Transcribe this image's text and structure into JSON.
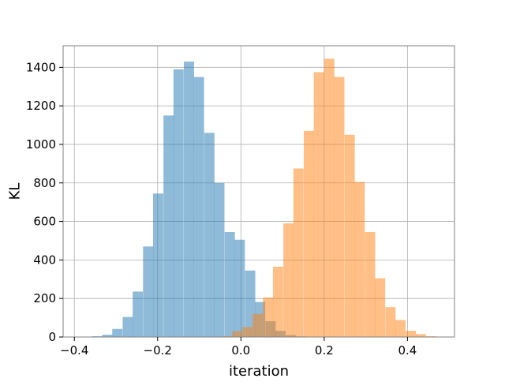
{
  "chart_data": {
    "type": "histogram",
    "title": "",
    "xlabel": "iteration",
    "ylabel": "KL",
    "xlim": [
      -0.427,
      0.513
    ],
    "ylim": [
      0,
      1512
    ],
    "grid": true,
    "legend": "none",
    "xticks": [
      -0.4,
      -0.2,
      0.0,
      0.2,
      0.4
    ],
    "xtick_labels": [
      "−0.4",
      "−0.2",
      "0.0",
      "0.2",
      "0.4"
    ],
    "yticks": [
      0,
      200,
      400,
      600,
      800,
      1000,
      1200,
      1400
    ],
    "ytick_labels": [
      "0",
      "200",
      "400",
      "600",
      "800",
      "1000",
      "1200",
      "1400"
    ],
    "series": [
      {
        "color": "#1f77b4",
        "alpha": 0.5,
        "bin_width": 0.0245,
        "bins": [
          [
            -0.382,
            2
          ],
          [
            -0.358,
            4
          ],
          [
            -0.333,
            12
          ],
          [
            -0.309,
            42
          ],
          [
            -0.284,
            104
          ],
          [
            -0.26,
            236
          ],
          [
            -0.235,
            470
          ],
          [
            -0.211,
            745
          ],
          [
            -0.186,
            1150
          ],
          [
            -0.162,
            1390
          ],
          [
            -0.137,
            1430
          ],
          [
            -0.113,
            1350
          ],
          [
            -0.088,
            1060
          ],
          [
            -0.064,
            800
          ],
          [
            -0.039,
            545
          ],
          [
            -0.015,
            505
          ],
          [
            0.01,
            345
          ],
          [
            0.034,
            182
          ],
          [
            0.059,
            82
          ],
          [
            0.083,
            32
          ],
          [
            0.108,
            10
          ],
          [
            0.132,
            3
          ]
        ]
      },
      {
        "color": "#ff7f0e",
        "alpha": 0.5,
        "bin_width": 0.0245,
        "bins": [
          [
            -0.07,
            2
          ],
          [
            -0.045,
            4
          ],
          [
            -0.021,
            30
          ],
          [
            0.004,
            52
          ],
          [
            0.028,
            120
          ],
          [
            0.053,
            205
          ],
          [
            0.077,
            365
          ],
          [
            0.102,
            590
          ],
          [
            0.126,
            875
          ],
          [
            0.151,
            1070
          ],
          [
            0.175,
            1375
          ],
          [
            0.2,
            1445
          ],
          [
            0.224,
            1350
          ],
          [
            0.249,
            1050
          ],
          [
            0.273,
            805
          ],
          [
            0.298,
            545
          ],
          [
            0.322,
            305
          ],
          [
            0.347,
            155
          ],
          [
            0.371,
            88
          ],
          [
            0.396,
            32
          ],
          [
            0.42,
            15
          ],
          [
            0.445,
            4
          ]
        ]
      }
    ]
  }
}
